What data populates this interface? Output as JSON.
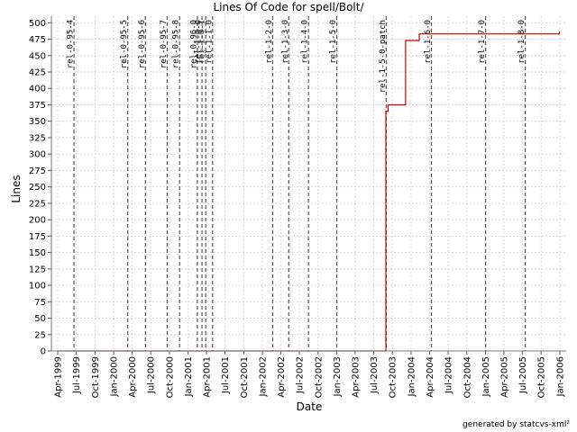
{
  "chart_data": {
    "type": "line",
    "title": "Lines Of Code for spell/Bolt/",
    "xlabel": "Date",
    "ylabel": "Lines",
    "ylim": [
      0,
      510
    ],
    "xlim": [
      "1999-03-01",
      "2006-02-01"
    ],
    "y_ticks": [
      0,
      25,
      50,
      75,
      100,
      125,
      150,
      175,
      200,
      225,
      250,
      275,
      300,
      325,
      350,
      375,
      400,
      425,
      450,
      475,
      500
    ],
    "x_ticks": [
      {
        "date": "1999-04-01",
        "label": "Apr-1999"
      },
      {
        "date": "1999-07-01",
        "label": "Jul-1999"
      },
      {
        "date": "1999-10-01",
        "label": "Oct-1999"
      },
      {
        "date": "2000-01-01",
        "label": "Jan-2000"
      },
      {
        "date": "2000-04-01",
        "label": "Apr-2000"
      },
      {
        "date": "2000-07-01",
        "label": "Jul-2000"
      },
      {
        "date": "2000-10-01",
        "label": "Oct-2000"
      },
      {
        "date": "2001-01-01",
        "label": "Jan-2001"
      },
      {
        "date": "2001-04-01",
        "label": "Apr-2001"
      },
      {
        "date": "2001-07-01",
        "label": "Jul-2001"
      },
      {
        "date": "2001-10-01",
        "label": "Oct-2001"
      },
      {
        "date": "2002-01-01",
        "label": "Jan-2002"
      },
      {
        "date": "2002-04-01",
        "label": "Apr-2002"
      },
      {
        "date": "2002-07-01",
        "label": "Jul-2002"
      },
      {
        "date": "2002-10-01",
        "label": "Oct-2002"
      },
      {
        "date": "2003-01-01",
        "label": "Jan-2003"
      },
      {
        "date": "2003-04-01",
        "label": "Apr-2003"
      },
      {
        "date": "2003-07-01",
        "label": "Jul-2003"
      },
      {
        "date": "2003-10-01",
        "label": "Oct-2003"
      },
      {
        "date": "2004-01-01",
        "label": "Jan-2004"
      },
      {
        "date": "2004-04-01",
        "label": "Apr-2004"
      },
      {
        "date": "2004-07-01",
        "label": "Jul-2004"
      },
      {
        "date": "2004-10-01",
        "label": "Oct-2004"
      },
      {
        "date": "2005-01-01",
        "label": "Jan-2005"
      },
      {
        "date": "2005-04-01",
        "label": "Apr-2005"
      },
      {
        "date": "2005-07-01",
        "label": "Jul-2005"
      },
      {
        "date": "2005-10-01",
        "label": "Oct-2005"
      },
      {
        "date": "2006-01-01",
        "label": "Jan-2006"
      }
    ],
    "grid": true,
    "line_color": "#cc0000",
    "marker_color": "#555555",
    "series": [
      {
        "points": [
          {
            "x": "1999-04-01",
            "y": 0
          },
          {
            "x": "2003-08-30",
            "y": 0
          },
          {
            "x": "2003-08-30",
            "y": 365
          },
          {
            "x": "2003-09-10",
            "y": 365
          },
          {
            "x": "2003-09-10",
            "y": 375
          },
          {
            "x": "2003-12-05",
            "y": 375
          },
          {
            "x": "2003-12-05",
            "y": 473
          },
          {
            "x": "2004-02-10",
            "y": 473
          },
          {
            "x": "2004-02-10",
            "y": 483
          },
          {
            "x": "2005-12-30",
            "y": 483
          },
          {
            "x": "2005-12-30",
            "y": 487
          }
        ]
      }
    ],
    "markers": [
      {
        "date": "1999-06-20",
        "label": "rel-0-95-4"
      },
      {
        "date": "2000-03-10",
        "label": "rel-0-95-5"
      },
      {
        "date": "2000-06-05",
        "label": "rel-0-95-6"
      },
      {
        "date": "2000-09-20",
        "label": "rel-0-95-7"
      },
      {
        "date": "2000-11-20",
        "label": "rel-0-95-8"
      },
      {
        "date": "2001-02-15",
        "label": "rel-0-96-0"
      },
      {
        "date": "2001-03-10",
        "label": "rel-1-0-0"
      },
      {
        "date": "2001-03-28",
        "label": "rel-1-0-1"
      },
      {
        "date": "2001-05-01",
        "label": "rel-1-1-0"
      },
      {
        "date": "2002-02-20",
        "label": "rel-1-2-0"
      },
      {
        "date": "2002-05-10",
        "label": "rel-1-3-0"
      },
      {
        "date": "2002-08-15",
        "label": "rel-1-4-0"
      },
      {
        "date": "2003-01-01",
        "label": "rel-1-5-0"
      },
      {
        "date": "2003-09-01",
        "label": "rel-1-5-0-patch"
      },
      {
        "date": "2004-04-10",
        "label": "rel-1-6-0"
      },
      {
        "date": "2005-01-01",
        "label": "rel-1-7-0"
      },
      {
        "date": "2005-07-15",
        "label": "rel-1-8-0"
      }
    ]
  },
  "footer": {
    "text": "generated by statcvs-xml²"
  }
}
